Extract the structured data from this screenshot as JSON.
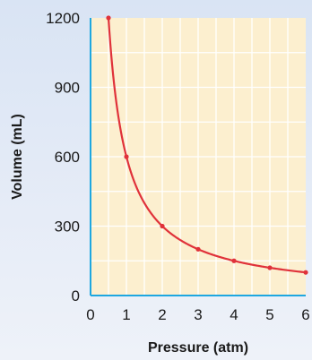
{
  "chart_data": {
    "type": "line",
    "xlabel": "Pressure (atm)",
    "ylabel": "Volume (mL)",
    "xlim": [
      0,
      6
    ],
    "ylim": [
      0,
      1200
    ],
    "x_ticks": [
      0,
      1,
      2,
      3,
      4,
      5,
      6
    ],
    "y_ticks": [
      0,
      300,
      600,
      900,
      1200
    ],
    "grid": true,
    "series": [
      {
        "points": [
          {
            "x": 0.5,
            "y": 1200
          },
          {
            "x": 1,
            "y": 600
          },
          {
            "x": 2,
            "y": 300
          },
          {
            "x": 3,
            "y": 200
          },
          {
            "x": 4,
            "y": 150
          },
          {
            "x": 5,
            "y": 120
          },
          {
            "x": 6,
            "y": 100
          }
        ]
      }
    ],
    "colors": {
      "plot_background": "#fcefcf",
      "grid": "#ffffff",
      "axis": "#1ea7e0",
      "line": "#e0323a"
    }
  }
}
